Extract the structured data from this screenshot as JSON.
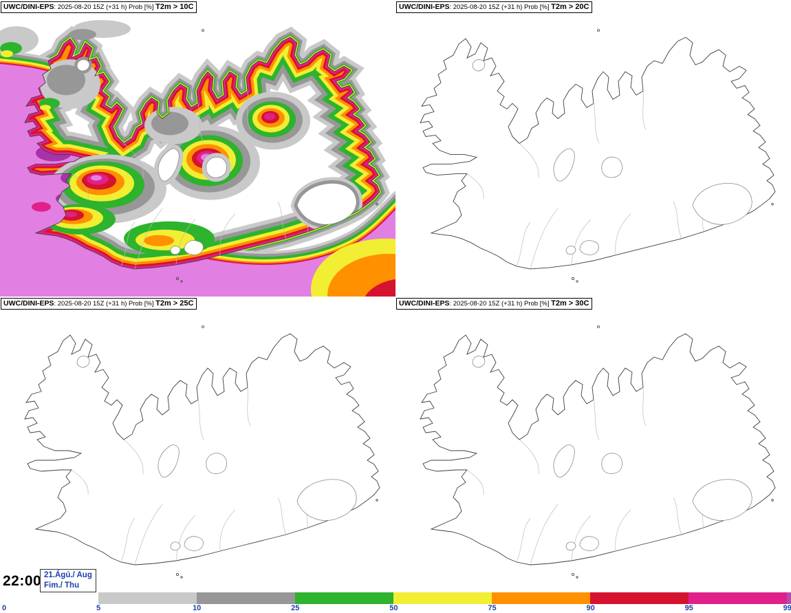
{
  "panels": [
    {
      "model": "UWC/DINI-EPS",
      "meta": ": 2025-08-20 15Z (+31 h) Prob [%] ",
      "param": "T2m > 10C"
    },
    {
      "model": "UWC/DINI-EPS",
      "meta": ": 2025-08-20 15Z (+31 h) Prob [%] ",
      "param": "T2m > 20C"
    },
    {
      "model": "UWC/DINI-EPS",
      "meta": ": 2025-08-20 15Z (+31 h) Prob [%] ",
      "param": "T2m > 25C"
    },
    {
      "model": "UWC/DINI-EPS",
      "meta": ": 2025-08-20 15Z (+31 h) Prob [%] ",
      "param": "T2m > 30C"
    }
  ],
  "footer": {
    "time": "22:00",
    "date_line1": "21.Ágú./ Aug",
    "date_line2": "Fim./ Thu",
    "date_color": "#1c3fae"
  },
  "legend": {
    "tick_labels": [
      "0",
      "5",
      "10",
      "25",
      "50",
      "75",
      "90",
      "95",
      "99"
    ],
    "tick_color": "#1c3fae",
    "segments": [
      {
        "range": "0-5",
        "color": "#ffffff"
      },
      {
        "range": "5-10",
        "color": "#c9c9c9"
      },
      {
        "range": "10-25",
        "color": "#979797"
      },
      {
        "range": "25-50",
        "color": "#2db32d"
      },
      {
        "range": "50-75",
        "color": "#f2ee33"
      },
      {
        "range": "75-90",
        "color": "#ff9000"
      },
      {
        "range": "90-95",
        "color": "#d5132f"
      },
      {
        "range": "95-99",
        "color": "#e0218a"
      },
      {
        "range": ">99",
        "color": "#b14fb1"
      }
    ]
  },
  "palette": {
    "grayLight": "#c9c9c9",
    "gray": "#979797",
    "green": "#2db32d",
    "yellow": "#f2ee33",
    "orange": "#ff9000",
    "red": "#d5132f",
    "redDark": "#a80d20",
    "magenta": "#e0218a",
    "violet": "#e27fe2",
    "violetDark": "#a832a8",
    "coast": "#3c3c3c",
    "contour": "#bcbcbc"
  }
}
